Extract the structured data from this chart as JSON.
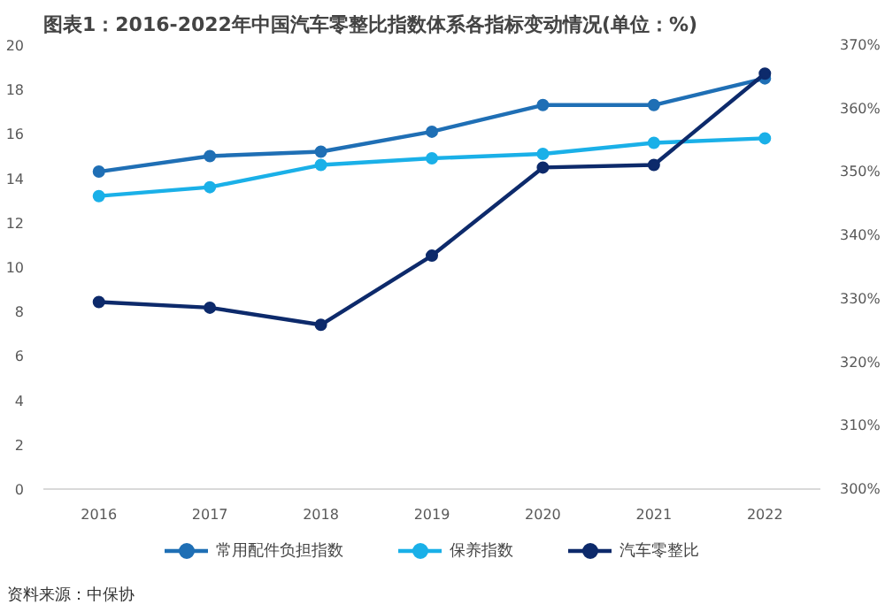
{
  "chart_data": {
    "type": "line",
    "title": "图表1：2016-2022年中国汽车零整比指数体系各指标变动情况(单位：%)",
    "categories": [
      "2016",
      "2017",
      "2018",
      "2019",
      "2020",
      "2021",
      "2022"
    ],
    "series": [
      {
        "name": "常用配件负担指数",
        "color": "#1f6fb5",
        "values": [
          14.3,
          15.0,
          15.2,
          16.1,
          17.3,
          17.3,
          18.5
        ]
      },
      {
        "name": "保养指数",
        "color": "#1ab0e8",
        "values": [
          13.2,
          13.6,
          14.6,
          14.9,
          15.1,
          15.6,
          15.8
        ]
      },
      {
        "name": "汽车零整比",
        "color": "#0d2a6b",
        "axis": "y2",
        "values": [
          329.5,
          328.6,
          325.9,
          336.8,
          350.7,
          351.1,
          365.5
        ]
      }
    ],
    "ylim": [
      0,
      20
    ],
    "yticks": [
      0,
      2,
      4,
      6,
      8,
      10,
      12,
      14,
      16,
      18,
      20
    ],
    "y2lim": [
      300,
      370
    ],
    "y2ticks": [
      {
        "value": 300,
        "label": "300%"
      },
      {
        "value": 310,
        "label": "310%"
      },
      {
        "value": 320,
        "label": "320%"
      },
      {
        "value": 330,
        "label": "330%"
      },
      {
        "value": 340,
        "label": "340%"
      },
      {
        "value": 350,
        "label": "350%"
      },
      {
        "value": 360,
        "label": "360%"
      },
      {
        "value": 370,
        "label": "370%"
      }
    ],
    "grid": false,
    "legend": "bottom",
    "marker": "circle",
    "line_style": "solid",
    "annotations": [
      "资料来源：中保协"
    ]
  }
}
